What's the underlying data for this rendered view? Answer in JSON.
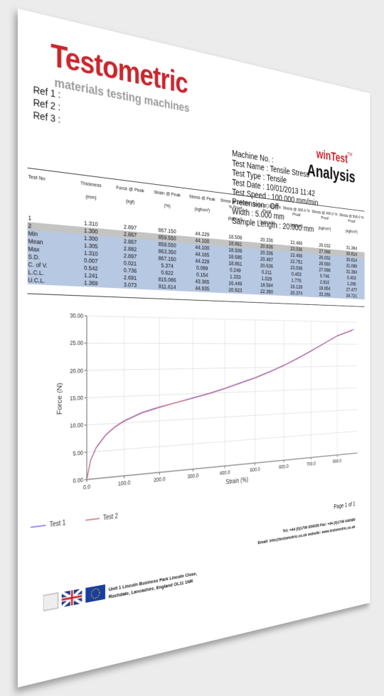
{
  "header": {
    "logo": "Testometric",
    "logo_subtitle": "materials testing machines",
    "refs": [
      "Ref 1 :",
      "Ref 2 :",
      "Ref 3 :"
    ],
    "product": "winTest",
    "trademark": "TM",
    "report": "Analysis"
  },
  "info": [
    "Machine No. :",
    "Test Name : Tensile Stress",
    "Test Type : Tensile",
    "Test Date : 10/01/2013 11:42",
    "Test Speed : 100.000 mm/min",
    "Pretension : Off",
    "Width : 5.000 mm",
    "Sample Length : 20.000 mm"
  ],
  "table": {
    "columns": [
      {
        "name": "Test No"
      },
      {
        "name": "Thickness",
        "unit": "(mm)"
      },
      {
        "name": "Force @ Peak",
        "unit": "(kgf)"
      },
      {
        "name": "Strain @ Peak",
        "unit": "(%)"
      },
      {
        "name": "Stress @ Peak",
        "unit": "(kgf/cm²)"
      },
      {
        "name": "Stress @ 100.000 % Proof",
        "unit": "(kgf/cm²)"
      },
      {
        "name": "Stress @ 200.0 % Proof",
        "unit": "(kgf/cm²)"
      },
      {
        "name": "Stress @ 300.0 % Proof",
        "unit": "(kgf/cm²)"
      },
      {
        "name": "Stress @ 400.0 % Proof",
        "unit": "(kgf/cm²)"
      },
      {
        "name": "Stress @ 500.0 % Proof",
        "unit": "(kgf/cm²)"
      }
    ],
    "rows": [
      [
        "1",
        "1.310",
        "2.897",
        "867.150",
        "44.229",
        "18.509",
        "20.336",
        "22.466",
        "26.032",
        "31.384"
      ],
      [
        "2",
        "1.300",
        "2.867",
        "859.550",
        "44.100",
        "18.861",
        "20.636",
        "23.036",
        "27.088",
        "30.814"
      ],
      [
        "Min",
        "1.300",
        "2.867",
        "859.550",
        "44.100",
        "18.509",
        "20.336",
        "22.466",
        "26.032",
        "30.814"
      ],
      [
        "Mean",
        "1.305",
        "2.882",
        "863.350",
        "44.165",
        "18.685",
        "20.487",
        "22.751",
        "26.560",
        "31.099"
      ],
      [
        "Max",
        "1.310",
        "2.897",
        "867.150",
        "44.229",
        "18.861",
        "20.636",
        "23.036",
        "27.088",
        "31.384"
      ],
      [
        "S.D.",
        "0.007",
        "0.021",
        "5.374",
        "0.089",
        "0.249",
        "0.211",
        "0.403",
        "0.746",
        "0.403"
      ],
      [
        "C. of V.",
        "0.542",
        "0.736",
        "0.622",
        "0.154",
        "1.333",
        "1.029",
        "1.776",
        "2.810",
        "1.296"
      ],
      [
        "L.C.L.",
        "1.241",
        "2.691",
        "815.086",
        "43.365",
        "16.449",
        "18.594",
        "19.128",
        "19.854",
        "27.477"
      ],
      [
        "U.C.L.",
        "1.369",
        "3.073",
        "911.614",
        "44.935",
        "20.923",
        "22.380",
        "26.374",
        "33.266",
        "34.721"
      ]
    ]
  },
  "chart_data": {
    "type": "line",
    "x_label": "Strain (%)",
    "y_label": "Force (N)",
    "xlim": [
      0,
      880
    ],
    "ylim": [
      0,
      30
    ],
    "xticks": [
      {
        "value": 0,
        "label": "0.0"
      },
      {
        "value": 100,
        "label": "100.0"
      },
      {
        "value": 200,
        "label": "200.0"
      },
      {
        "value": 300,
        "label": "300.0"
      },
      {
        "value": 400,
        "label": "400.0"
      },
      {
        "value": 500,
        "label": "500.0"
      },
      {
        "value": 600,
        "label": "600.0"
      },
      {
        "value": 700,
        "label": "700.0"
      },
      {
        "value": 800,
        "label": "800.0"
      }
    ],
    "yticks": [
      {
        "value": 0,
        "label": "0.00"
      },
      {
        "value": 5,
        "label": "5.00"
      },
      {
        "value": 10,
        "label": "10.00"
      },
      {
        "value": 15,
        "label": "15.00"
      },
      {
        "value": 20,
        "label": "20.00"
      },
      {
        "value": 25,
        "label": "25.00"
      },
      {
        "value": 30,
        "label": "30.00"
      }
    ],
    "grid": true,
    "series": [
      {
        "name": "Test 1",
        "color": "#6b6ff0",
        "x": [
          0,
          10,
          25,
          50,
          75,
          100,
          150,
          200,
          250,
          300,
          350,
          400,
          450,
          500,
          550,
          600,
          650,
          700,
          750,
          800,
          850,
          867.15
        ],
        "values": [
          0,
          3.5,
          5.8,
          8.0,
          9.4,
          10.4,
          11.8,
          12.7,
          13.4,
          14.2,
          15.0,
          15.9,
          16.9,
          17.9,
          19.1,
          20.4,
          21.9,
          23.5,
          25.2,
          26.9,
          28.0,
          28.4
        ]
      },
      {
        "name": "Test 2",
        "color": "#d0606e",
        "x": [
          0,
          10,
          25,
          50,
          75,
          100,
          150,
          200,
          250,
          300,
          350,
          400,
          450,
          500,
          550,
          600,
          650,
          700,
          750,
          800,
          850,
          859.55
        ],
        "values": [
          0,
          3.4,
          5.7,
          7.9,
          9.3,
          10.3,
          11.7,
          12.6,
          13.4,
          14.1,
          14.9,
          15.8,
          16.8,
          17.8,
          19.0,
          20.3,
          21.8,
          23.4,
          25.1,
          26.8,
          27.9,
          28.1
        ]
      }
    ]
  },
  "footer": {
    "page": "Page 1 of 1",
    "tel": "Tel: +44 (0)1706 654039  Fax: +44 (0)1706 646089",
    "email": "Email: info@testometric.co.uk  website: www.testometric.co.uk",
    "address": [
      "Unit 1 Lincoln Business Park Lincoln Close,",
      "Rochdale, Lancashire, England OL11 1NR"
    ]
  }
}
